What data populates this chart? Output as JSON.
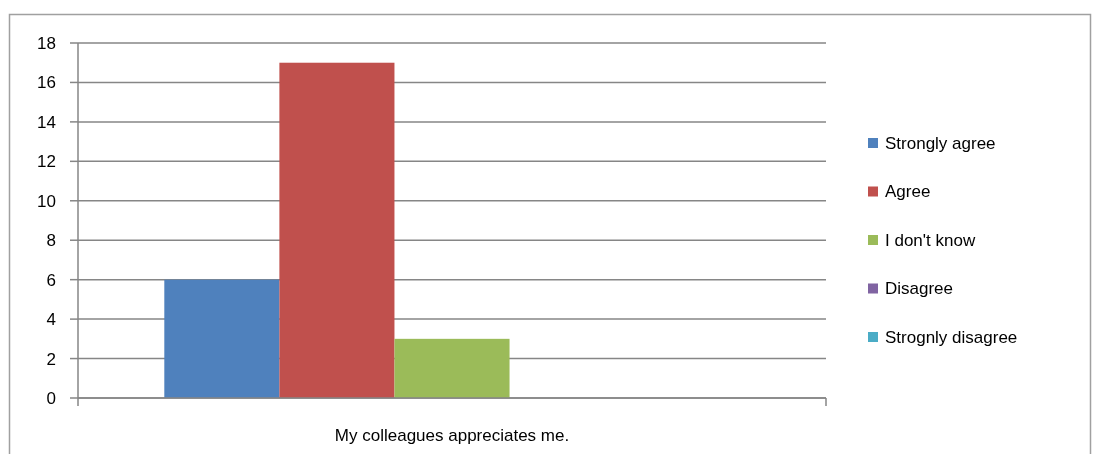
{
  "chart_data": {
    "type": "bar",
    "categories": [
      "My colleagues appreciates me."
    ],
    "series": [
      {
        "name": "Strongly agree",
        "color": "#4f81bd",
        "values": [
          6
        ]
      },
      {
        "name": "Agree",
        "color": "#c0504d",
        "values": [
          17
        ]
      },
      {
        "name": "I don't know",
        "color": "#9bbb59",
        "values": [
          3
        ]
      },
      {
        "name": "Disagree",
        "color": "#8064a2",
        "values": [
          0
        ]
      },
      {
        "name": "Strognly disagree",
        "color": "#4bacc6",
        "values": [
          0
        ]
      }
    ],
    "ylim": [
      0,
      18
    ],
    "yticks": [
      0,
      2,
      4,
      6,
      8,
      10,
      12,
      14,
      16,
      18
    ],
    "grid": "y",
    "legend": "right"
  }
}
